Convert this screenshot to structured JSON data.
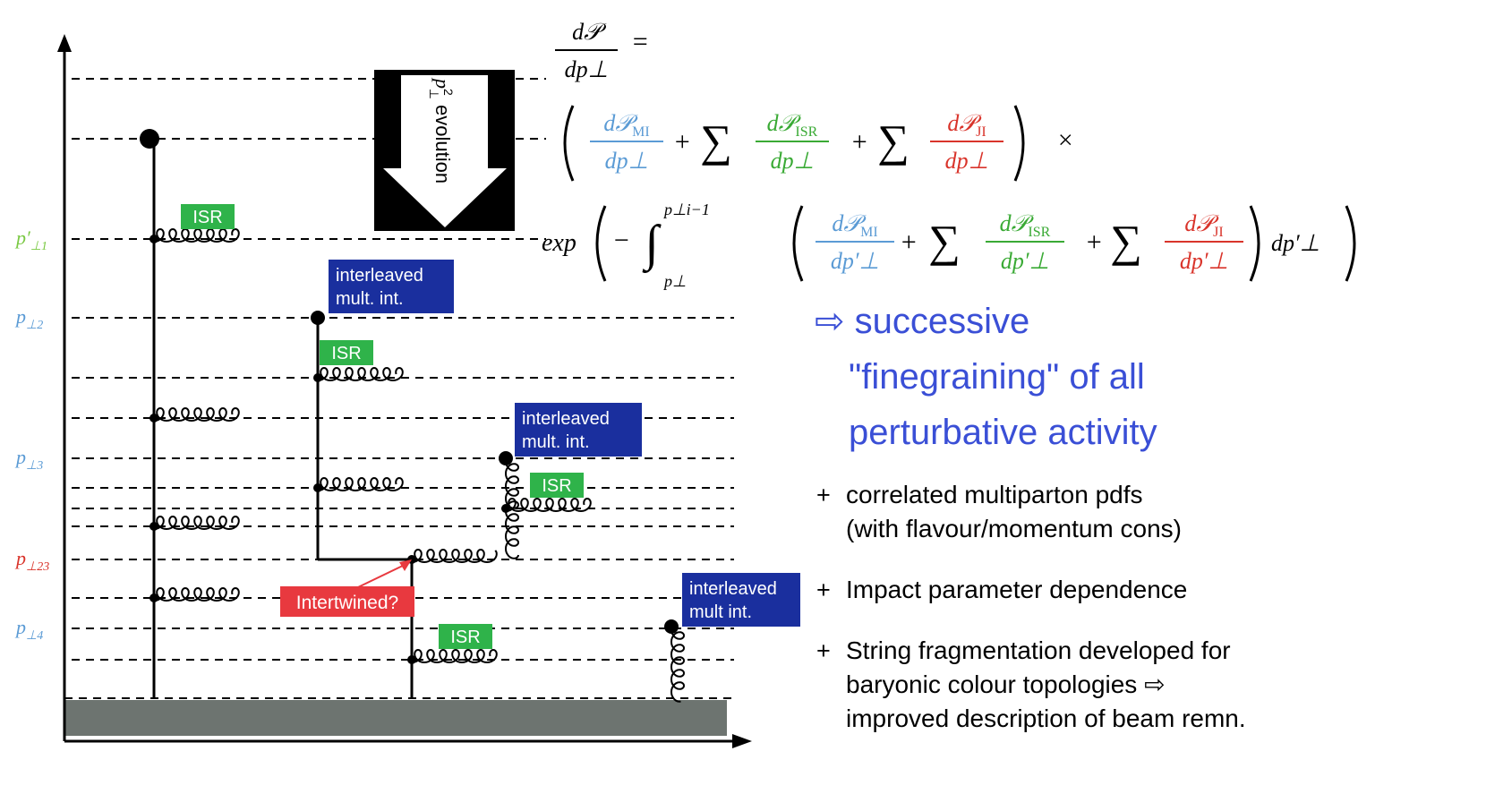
{
  "axis_labels": [
    {
      "main": "p′",
      "sub": "⊥1",
      "color": "#7ac943"
    },
    {
      "main": "p",
      "sub": "⊥2",
      "color": "#5b9bd5"
    },
    {
      "main": "p",
      "sub": "⊥3",
      "color": "#5b9bd5"
    },
    {
      "main": "p",
      "sub": "⊥23",
      "color": "#d9342b"
    },
    {
      "main": "p",
      "sub": "⊥4",
      "color": "#5b9bd5"
    }
  ],
  "isr_boxes": [
    "ISR",
    "ISR",
    "ISR",
    "ISR"
  ],
  "interleaved_boxes": [
    {
      "lines": [
        "interleaved",
        "mult. int."
      ]
    },
    {
      "lines": [
        "interleaved",
        "mult. int."
      ]
    },
    {
      "lines": [
        "interleaved",
        "mult int."
      ]
    }
  ],
  "intertwined": "Intertwined?",
  "evolution_label": {
    "main": "p",
    "sup": "2",
    "sub": "⊥",
    "text": "evolution"
  },
  "formula": {
    "lhs": {
      "num": "d𝒫",
      "den": "dp⊥"
    },
    "eq": "=",
    "plus": "+",
    "sum": "∑",
    "times": "×",
    "line2_terms": [
      {
        "num": "d𝒫",
        "sub": "MI",
        "den": "dp⊥",
        "color": "#5b9bd5"
      },
      {
        "num": "d𝒫",
        "sub": "ISR",
        "den": "dp⊥",
        "color": "#3aaa35"
      },
      {
        "num": "d𝒫",
        "sub": "JI",
        "den": "dp⊥",
        "color": "#d9342b"
      }
    ],
    "exp": "exp",
    "minus": "−",
    "integral": "∫",
    "upper": "p⊥i−1",
    "lower": "p⊥",
    "line3_terms": [
      {
        "num": "d𝒫",
        "sub": "MI",
        "den": "dp′⊥",
        "color": "#5b9bd5"
      },
      {
        "num": "d𝒫",
        "sub": "ISR",
        "den": "dp′⊥",
        "color": "#3aaa35"
      },
      {
        "num": "d𝒫",
        "sub": "JI",
        "den": "dp′⊥",
        "color": "#d9342b"
      }
    ],
    "tail": "dp′⊥"
  },
  "headline": [
    "⇨ successive",
    "\"finegraining\" of all",
    "perturbative activity"
  ],
  "bullets": [
    {
      "marker": "+",
      "lines": [
        "correlated multiparton pdfs",
        "(with flavour/momentum cons)"
      ]
    },
    {
      "marker": "+",
      "lines": [
        "Impact parameter dependence"
      ]
    },
    {
      "marker": "+",
      "lines": [
        "String fragmentation developed for",
        "baryonic colour topologies ⇨",
        "improved description of beam remn."
      ]
    }
  ]
}
